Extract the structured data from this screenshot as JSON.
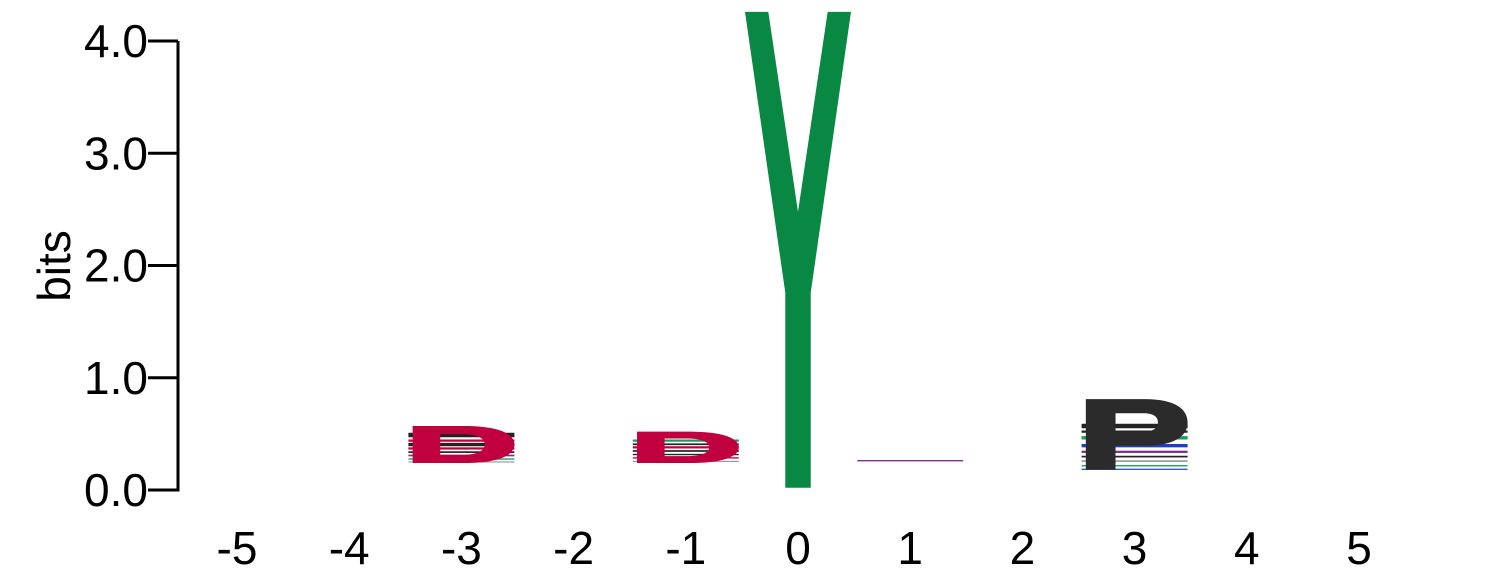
{
  "chart_data": {
    "type": "sequence-logo",
    "ylabel": "bits",
    "ylim": [
      0,
      4
    ],
    "y_ticks": [
      "0.0",
      "1.0",
      "2.0",
      "3.0",
      "4.0"
    ],
    "y_tick_values": [
      0,
      1,
      2,
      3,
      4
    ],
    "x_positions": [
      -5,
      -4,
      -3,
      -2,
      -1,
      0,
      1,
      2,
      3,
      4,
      5
    ],
    "x_tick_labels": [
      "-5",
      "-4",
      "-3",
      "-2",
      "-1",
      "0",
      "1",
      "2",
      "3",
      "4",
      "5"
    ],
    "colors": {
      "D": "#c0003f",
      "Y": "#088843",
      "P": "#2b2b2b",
      "dark": "#222222",
      "green": "#1a9c5a",
      "blue": "#1f3fbf",
      "pink": "#c0003f",
      "purple": "#7a2f8f",
      "gray": "#9a9a9a"
    },
    "letters": [
      {
        "position": -3,
        "base": 0.24,
        "height": 0.33,
        "char": "D",
        "color_key": "D"
      },
      {
        "position": -1,
        "base": 0.24,
        "height": 0.28,
        "char": "D",
        "color_key": "D"
      },
      {
        "position": 0,
        "base": 0.02,
        "height": 4.24,
        "char": "Y",
        "color_key": "Y"
      },
      {
        "position": 3,
        "base": 0.18,
        "height": 0.63,
        "char": "P",
        "color_key": "P"
      }
    ],
    "minor_stacks": [
      {
        "position": -3,
        "bands": [
          {
            "base": 0.47,
            "height": 0.04,
            "color_key": "dark"
          },
          {
            "base": 0.43,
            "height": 0.02,
            "color_key": "pink"
          },
          {
            "base": 0.39,
            "height": 0.03,
            "color_key": "dark"
          },
          {
            "base": 0.36,
            "height": 0.02,
            "color_key": "pink"
          },
          {
            "base": 0.33,
            "height": 0.015,
            "color_key": "dark"
          },
          {
            "base": 0.3,
            "height": 0.015,
            "color_key": "purple"
          },
          {
            "base": 0.27,
            "height": 0.012,
            "color_key": "green"
          },
          {
            "base": 0.245,
            "height": 0.01,
            "color_key": "gray"
          }
        ]
      },
      {
        "position": -1,
        "bands": [
          {
            "base": 0.43,
            "height": 0.02,
            "color_key": "green"
          },
          {
            "base": 0.4,
            "height": 0.015,
            "color_key": "dark"
          },
          {
            "base": 0.37,
            "height": 0.02,
            "color_key": "pink"
          },
          {
            "base": 0.34,
            "height": 0.015,
            "color_key": "dark"
          },
          {
            "base": 0.31,
            "height": 0.012,
            "color_key": "dark"
          },
          {
            "base": 0.28,
            "height": 0.012,
            "color_key": "pink"
          },
          {
            "base": 0.25,
            "height": 0.01,
            "color_key": "gray"
          }
        ]
      },
      {
        "position": 1,
        "bands": [
          {
            "base": 0.255,
            "height": 0.012,
            "color_key": "purple"
          }
        ]
      },
      {
        "position": 3,
        "bands": [
          {
            "base": 0.55,
            "height": 0.04,
            "color_key": "dark"
          },
          {
            "base": 0.51,
            "height": 0.02,
            "color_key": "dark"
          },
          {
            "base": 0.45,
            "height": 0.03,
            "color_key": "green"
          },
          {
            "base": 0.38,
            "height": 0.03,
            "color_key": "blue"
          },
          {
            "base": 0.33,
            "height": 0.02,
            "color_key": "purple"
          },
          {
            "base": 0.29,
            "height": 0.015,
            "color_key": "dark"
          },
          {
            "base": 0.25,
            "height": 0.015,
            "color_key": "gray"
          },
          {
            "base": 0.21,
            "height": 0.012,
            "color_key": "green"
          },
          {
            "base": 0.18,
            "height": 0.01,
            "color_key": "blue"
          }
        ]
      }
    ]
  }
}
